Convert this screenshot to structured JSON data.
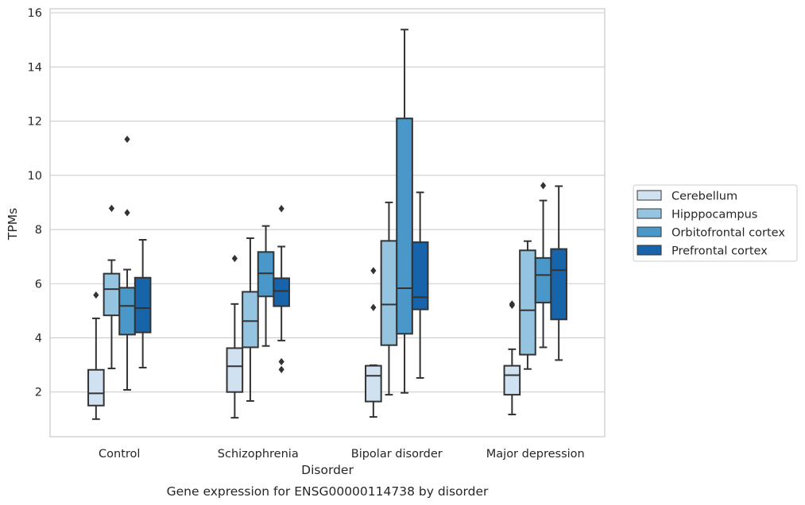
{
  "caption": "Gene expression for ENSG00000114738 by disorder",
  "colors": {
    "Cerebellum": "#d0e1f2",
    "Hipppocampus": "#94c4df",
    "Orbitofrontal cortex": "#4a98c9",
    "Prefrontal cortex": "#1764ab",
    "edge": "#333333",
    "grid": "#cccccc",
    "spine": "#cccccc"
  },
  "chart_data": {
    "type": "box",
    "title": "",
    "xlabel": "Disorder",
    "ylabel": "TPMs",
    "ylim": [
      0.35,
      16.15
    ],
    "yticks": [
      2,
      4,
      6,
      8,
      10,
      12,
      14,
      16
    ],
    "grid": "horizontal",
    "legend_position": "right",
    "categories": [
      "Control",
      "Schizophrenia",
      "Bipolar disorder",
      "Major depression"
    ],
    "series": [
      {
        "name": "Cerebellum",
        "boxes": [
          {
            "whislo": 1.0,
            "q1": 1.5,
            "med": 1.95,
            "q3": 2.82,
            "whishi": 4.72,
            "fliers": [
              5.58
            ]
          },
          {
            "whislo": 1.05,
            "q1": 2.0,
            "med": 2.95,
            "q3": 3.62,
            "whishi": 5.25,
            "fliers": [
              6.93
            ]
          },
          {
            "whislo": 1.08,
            "q1": 1.65,
            "med": 2.6,
            "q3": 2.97,
            "whishi": 2.99,
            "fliers": [
              6.48,
              5.12
            ]
          },
          {
            "whislo": 1.17,
            "q1": 1.9,
            "med": 2.62,
            "q3": 2.97,
            "whishi": 3.58,
            "fliers": [
              5.2,
              5.25
            ]
          }
        ]
      },
      {
        "name": "Hipppocampus",
        "boxes": [
          {
            "whislo": 2.87,
            "q1": 4.83,
            "med": 5.8,
            "q3": 6.37,
            "whishi": 6.87,
            "fliers": [
              8.78
            ]
          },
          {
            "whislo": 1.67,
            "q1": 3.65,
            "med": 4.62,
            "q3": 5.7,
            "whishi": 7.68,
            "fliers": []
          },
          {
            "whislo": 1.9,
            "q1": 3.73,
            "med": 5.23,
            "q3": 7.58,
            "whishi": 9.0,
            "fliers": []
          },
          {
            "whislo": 2.85,
            "q1": 3.38,
            "med": 5.02,
            "q3": 7.23,
            "whishi": 7.57,
            "fliers": []
          }
        ]
      },
      {
        "name": "Orbitofrontal cortex",
        "boxes": [
          {
            "whislo": 2.08,
            "q1": 4.12,
            "med": 5.18,
            "q3": 5.85,
            "whishi": 6.52,
            "fliers": [
              8.62,
              11.33
            ]
          },
          {
            "whislo": 3.7,
            "q1": 5.53,
            "med": 6.38,
            "q3": 7.17,
            "whishi": 8.13,
            "fliers": []
          },
          {
            "whislo": 1.97,
            "q1": 4.15,
            "med": 5.83,
            "q3": 12.1,
            "whishi": 15.38,
            "fliers": []
          },
          {
            "whislo": 3.65,
            "q1": 5.3,
            "med": 6.32,
            "q3": 6.95,
            "whishi": 9.07,
            "fliers": [
              9.62
            ]
          }
        ]
      },
      {
        "name": "Prefrontal cortex",
        "boxes": [
          {
            "whislo": 2.9,
            "q1": 4.2,
            "med": 5.1,
            "q3": 6.22,
            "whishi": 7.62,
            "fliers": []
          },
          {
            "whislo": 3.9,
            "q1": 5.17,
            "med": 5.73,
            "q3": 6.2,
            "whishi": 7.37,
            "fliers": [
              8.77,
              3.12,
              2.83
            ]
          },
          {
            "whislo": 2.52,
            "q1": 5.05,
            "med": 5.5,
            "q3": 7.53,
            "whishi": 9.37,
            "fliers": []
          },
          {
            "whislo": 3.18,
            "q1": 4.68,
            "med": 6.5,
            "q3": 7.28,
            "whishi": 9.6,
            "fliers": []
          }
        ]
      }
    ]
  }
}
